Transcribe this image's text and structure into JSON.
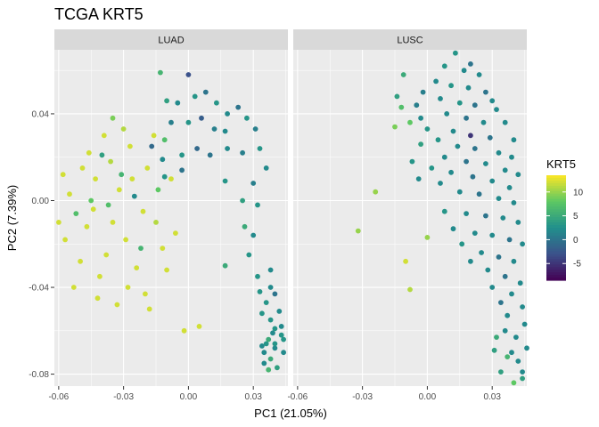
{
  "chart_data": {
    "type": "scatter",
    "title": "TCGA KRT5",
    "xlabel": "PC1 (21.05%)",
    "ylabel": "PC2 (7.39%)",
    "xlim": [
      -0.062,
      0.046
    ],
    "ylim": [
      -0.0855,
      0.0695
    ],
    "x_ticks": [
      -0.06,
      -0.03,
      0.0,
      0.03
    ],
    "x_tick_labels": [
      "-0.06",
      "-0.03",
      "0.00",
      "0.03"
    ],
    "y_ticks": [
      -0.08,
      -0.04,
      0.0,
      0.04
    ],
    "y_tick_labels": [
      "-0.08",
      "-0.04",
      "0.00",
      "0.04"
    ],
    "grid": true,
    "facets": [
      "LUAD",
      "LUSC"
    ],
    "color_scale": {
      "title": "KRT5",
      "palette": "viridis",
      "range": [
        -8.5,
        13.5
      ],
      "breaks": [
        10,
        5,
        0,
        -5
      ],
      "break_labels": [
        "10",
        "5",
        "0",
        "-5"
      ],
      "colors": [
        "#440154",
        "#3b528b",
        "#21908c",
        "#5dc863",
        "#fde725"
      ]
    },
    "legend_position": "right",
    "series": [
      {
        "name": "LUAD",
        "points": [
          [
            -0.043,
            0.01,
            12
          ],
          [
            -0.032,
            0.005,
            12
          ],
          [
            -0.047,
            -0.012,
            12
          ],
          [
            -0.029,
            -0.018,
            12
          ],
          [
            -0.038,
            -0.025,
            12
          ],
          [
            -0.055,
            0.003,
            12
          ],
          [
            -0.021,
            -0.005,
            12
          ],
          [
            -0.036,
            0.018,
            11
          ],
          [
            -0.05,
            -0.028,
            12
          ],
          [
            -0.024,
            -0.031,
            12
          ],
          [
            -0.041,
            -0.035,
            12
          ],
          [
            -0.015,
            -0.01,
            11
          ],
          [
            -0.06,
            -0.01,
            12
          ],
          [
            -0.058,
            0.012,
            12
          ],
          [
            -0.033,
            -0.048,
            12
          ],
          [
            -0.046,
            0.022,
            12
          ],
          [
            -0.027,
            0.025,
            12
          ],
          [
            -0.019,
            0.015,
            12
          ],
          [
            -0.012,
            -0.022,
            12
          ],
          [
            -0.053,
            -0.04,
            12
          ],
          [
            -0.02,
            -0.043,
            12
          ],
          [
            -0.01,
            -0.032,
            12
          ],
          [
            -0.03,
            0.033,
            11
          ],
          [
            -0.018,
            -0.05,
            12
          ],
          [
            -0.002,
            -0.06,
            12
          ],
          [
            0.005,
            -0.058,
            12
          ],
          [
            -0.057,
            -0.018,
            12
          ],
          [
            -0.044,
            -0.004,
            12
          ],
          [
            -0.035,
            -0.01,
            12
          ],
          [
            -0.026,
            0.01,
            12
          ],
          [
            -0.039,
            0.03,
            12
          ],
          [
            -0.049,
            0.015,
            12
          ],
          [
            -0.016,
            0.03,
            12
          ],
          [
            -0.008,
            0.01,
            12
          ],
          [
            -0.006,
            -0.015,
            12
          ],
          [
            -0.042,
            -0.045,
            12
          ],
          [
            -0.028,
            -0.04,
            12
          ],
          [
            -0.037,
            -0.002,
            7
          ],
          [
            -0.031,
            0.012,
            6
          ],
          [
            -0.045,
            0.0,
            8
          ],
          [
            -0.022,
            -0.022,
            6
          ],
          [
            -0.04,
            0.021,
            4
          ],
          [
            -0.052,
            -0.006,
            7
          ],
          [
            -0.025,
            0.002,
            2
          ],
          [
            -0.014,
            0.005,
            8
          ],
          [
            -0.011,
            0.028,
            7
          ],
          [
            -0.035,
            0.038,
            9
          ],
          [
            -0.013,
            0.059,
            6
          ],
          [
            -0.01,
            0.046,
            4
          ],
          [
            -0.005,
            0.045,
            2
          ],
          [
            0.0,
            0.058,
            -3
          ],
          [
            0.003,
            0.048,
            3
          ],
          [
            0.008,
            0.05,
            0
          ],
          [
            0.013,
            0.045,
            3
          ],
          [
            0.018,
            0.04,
            2
          ],
          [
            0.023,
            0.043,
            0
          ],
          [
            -0.008,
            0.036,
            1
          ],
          [
            0.0,
            0.036,
            3
          ],
          [
            0.006,
            0.038,
            -2
          ],
          [
            0.012,
            0.033,
            1
          ],
          [
            0.017,
            0.032,
            2
          ],
          [
            0.027,
            0.038,
            3
          ],
          [
            0.031,
            0.033,
            1
          ],
          [
            -0.017,
            0.025,
            -1
          ],
          [
            -0.012,
            0.019,
            2
          ],
          [
            -0.003,
            0.021,
            3
          ],
          [
            0.004,
            0.024,
            -1
          ],
          [
            0.01,
            0.021,
            0
          ],
          [
            0.018,
            0.024,
            2
          ],
          [
            0.025,
            0.022,
            1
          ],
          [
            0.033,
            0.024,
            3
          ],
          [
            0.036,
            0.015,
            2
          ],
          [
            0.03,
            0.008,
            1
          ],
          [
            0.017,
            0.009,
            3
          ],
          [
            0.025,
            0.0,
            4
          ],
          [
            -0.011,
            0.011,
            3
          ],
          [
            -0.003,
            0.014,
            0
          ],
          [
            0.032,
            -0.002,
            3
          ],
          [
            0.026,
            -0.012,
            5
          ],
          [
            0.03,
            -0.016,
            2
          ],
          [
            0.028,
            -0.025,
            3
          ],
          [
            0.017,
            -0.03,
            5
          ],
          [
            0.038,
            -0.032,
            2
          ],
          [
            0.032,
            -0.035,
            3
          ],
          [
            0.038,
            -0.04,
            2
          ],
          [
            0.033,
            -0.042,
            3
          ],
          [
            0.04,
            -0.043,
            0
          ],
          [
            0.036,
            -0.047,
            3
          ],
          [
            0.042,
            -0.051,
            2
          ],
          [
            0.038,
            -0.055,
            3
          ],
          [
            0.043,
            -0.058,
            2
          ],
          [
            0.039,
            -0.061,
            2
          ],
          [
            0.044,
            -0.064,
            3
          ],
          [
            0.04,
            -0.068,
            2
          ],
          [
            0.036,
            -0.066,
            3
          ],
          [
            0.044,
            -0.07,
            2
          ],
          [
            0.038,
            -0.073,
            5
          ],
          [
            0.041,
            -0.077,
            4
          ],
          [
            0.037,
            -0.078,
            6
          ],
          [
            0.035,
            -0.075,
            2
          ],
          [
            0.034,
            -0.067,
            2
          ],
          [
            0.037,
            -0.064,
            5
          ],
          [
            0.04,
            -0.066,
            3
          ],
          [
            0.043,
            -0.062,
            3
          ],
          [
            0.034,
            -0.052,
            3
          ],
          [
            0.04,
            -0.059,
            3
          ],
          [
            0.035,
            -0.07,
            2
          ]
        ]
      },
      {
        "name": "LUSC",
        "points": [
          [
            0.008,
            0.062,
            3
          ],
          [
            0.013,
            0.068,
            3
          ],
          [
            0.017,
            0.06,
            2
          ],
          [
            0.02,
            0.063,
            0
          ],
          [
            0.024,
            0.058,
            2
          ],
          [
            0.004,
            0.055,
            2
          ],
          [
            0.011,
            0.053,
            3
          ],
          [
            0.019,
            0.052,
            2
          ],
          [
            0.027,
            0.05,
            0
          ],
          [
            0.03,
            0.046,
            2
          ],
          [
            -0.002,
            0.05,
            1
          ],
          [
            0.006,
            0.047,
            2
          ],
          [
            0.015,
            0.045,
            3
          ],
          [
            0.022,
            0.044,
            0
          ],
          [
            0.032,
            0.042,
            2
          ],
          [
            -0.003,
            0.038,
            2
          ],
          [
            0.009,
            0.04,
            2
          ],
          [
            0.018,
            0.038,
            0
          ],
          [
            0.026,
            0.036,
            2
          ],
          [
            0.036,
            0.036,
            2
          ],
          [
            0.0,
            0.033,
            3
          ],
          [
            0.012,
            0.032,
            2
          ],
          [
            0.02,
            0.03,
            -5
          ],
          [
            0.029,
            0.029,
            0
          ],
          [
            0.04,
            0.028,
            2
          ],
          [
            0.005,
            0.028,
            3
          ],
          [
            0.014,
            0.025,
            2
          ],
          [
            0.022,
            0.024,
            0
          ],
          [
            0.033,
            0.022,
            2
          ],
          [
            0.039,
            0.02,
            2
          ],
          [
            0.008,
            0.02,
            2
          ],
          [
            0.018,
            0.018,
            0
          ],
          [
            0.027,
            0.017,
            2
          ],
          [
            0.036,
            0.014,
            2
          ],
          [
            0.042,
            0.012,
            2
          ],
          [
            0.011,
            0.013,
            2
          ],
          [
            0.021,
            0.011,
            0
          ],
          [
            0.03,
            0.009,
            2
          ],
          [
            0.038,
            0.006,
            2
          ],
          [
            0.015,
            0.004,
            2
          ],
          [
            0.024,
            0.003,
            0
          ],
          [
            0.033,
            0.001,
            2
          ],
          [
            0.04,
            -0.001,
            2
          ],
          [
            0.018,
            -0.006,
            2
          ],
          [
            0.027,
            -0.007,
            0
          ],
          [
            0.035,
            -0.008,
            2
          ],
          [
            0.042,
            -0.01,
            2
          ],
          [
            0.022,
            -0.015,
            2
          ],
          [
            0.03,
            -0.016,
            2
          ],
          [
            0.038,
            -0.018,
            0
          ],
          [
            0.044,
            -0.02,
            2
          ],
          [
            0.025,
            -0.024,
            2
          ],
          [
            0.033,
            -0.026,
            0
          ],
          [
            0.04,
            -0.028,
            2
          ],
          [
            0.028,
            -0.032,
            2
          ],
          [
            0.036,
            -0.035,
            0
          ],
          [
            0.043,
            -0.038,
            2
          ],
          [
            0.03,
            -0.04,
            2
          ],
          [
            0.039,
            -0.043,
            2
          ],
          [
            0.034,
            -0.047,
            0
          ],
          [
            0.044,
            -0.049,
            2
          ],
          [
            0.037,
            -0.053,
            2
          ],
          [
            0.045,
            -0.057,
            2
          ],
          [
            0.041,
            -0.063,
            2
          ],
          [
            0.046,
            -0.068,
            2
          ],
          [
            0.042,
            -0.074,
            2
          ],
          [
            0.044,
            -0.079,
            2
          ],
          [
            0.039,
            -0.07,
            2
          ],
          [
            0.036,
            -0.06,
            2
          ],
          [
            -0.011,
            0.058,
            5
          ],
          [
            -0.014,
            0.048,
            4
          ],
          [
            -0.012,
            0.043,
            7
          ],
          [
            -0.008,
            0.036,
            8
          ],
          [
            -0.015,
            0.034,
            9
          ],
          [
            -0.005,
            0.044,
            1
          ],
          [
            -0.003,
            0.026,
            4
          ],
          [
            0.002,
            0.015,
            3
          ],
          [
            0.006,
            0.008,
            2
          ],
          [
            -0.007,
            0.018,
            3
          ],
          [
            -0.004,
            0.01,
            2
          ],
          [
            0.008,
            -0.005,
            3
          ],
          [
            0.012,
            -0.013,
            2
          ],
          [
            0.016,
            -0.02,
            3
          ],
          [
            0.02,
            -0.028,
            2
          ],
          [
            -0.024,
            0.004,
            10
          ],
          [
            -0.032,
            -0.014,
            10
          ],
          [
            -0.01,
            -0.028,
            12
          ],
          [
            0.0,
            -0.017,
            10
          ],
          [
            -0.008,
            -0.041,
            11
          ],
          [
            0.032,
            -0.063,
            5
          ],
          [
            0.037,
            -0.072,
            6
          ],
          [
            0.04,
            -0.084,
            8
          ],
          [
            0.031,
            -0.069,
            4
          ],
          [
            0.034,
            -0.079,
            4
          ],
          [
            0.044,
            -0.082,
            4
          ]
        ]
      }
    ]
  }
}
